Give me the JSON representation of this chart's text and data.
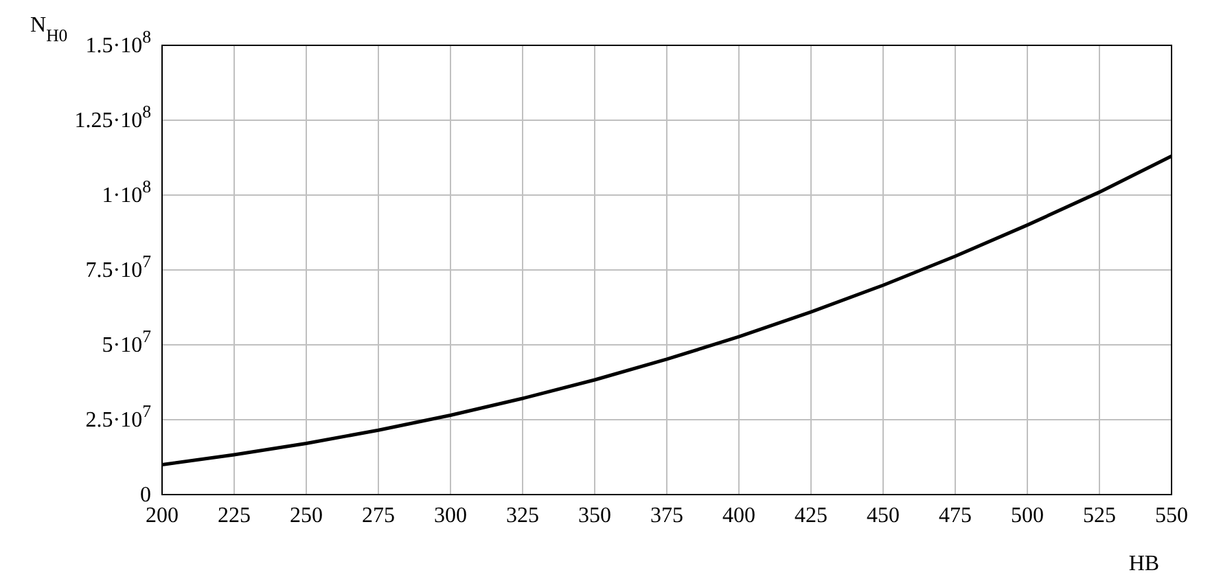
{
  "chart_data": {
    "type": "line",
    "xlabel": "HB",
    "ylabel": "N$_{H0}$",
    "x": [
      200,
      225,
      250,
      275,
      300,
      325,
      350,
      375,
      400,
      425,
      450,
      475,
      500,
      525,
      550
    ],
    "series": [
      {
        "color": "#000000",
        "values": [
          10000000,
          13300000,
          17100000,
          21500000,
          26500000,
          32100000,
          38300000,
          45200000,
          52700000,
          61000000,
          69900000,
          79600000,
          90000000,
          101000000,
          113000000
        ]
      }
    ],
    "xlim": [
      200,
      550
    ],
    "xticks": [
      200,
      225,
      250,
      275,
      300,
      325,
      350,
      375,
      400,
      425,
      450,
      475,
      500,
      525,
      550
    ],
    "ylim": [
      0,
      150000000
    ],
    "yticks": [
      {
        "value": 0,
        "label": "0"
      },
      {
        "value": 25000000,
        "label": "2.5·10$^{7}$"
      },
      {
        "value": 50000000,
        "label": "5·10$^{7}$"
      },
      {
        "value": 75000000,
        "label": "7.5·10$^{7}$"
      },
      {
        "value": 100000000,
        "label": "1·10$^{8}$"
      },
      {
        "value": 125000000,
        "label": "1.25·10$^{8}$"
      },
      {
        "value": 150000000,
        "label": "1.5·10$^{8}$"
      }
    ],
    "grid": true,
    "marker": "none",
    "line_style": "solid"
  }
}
